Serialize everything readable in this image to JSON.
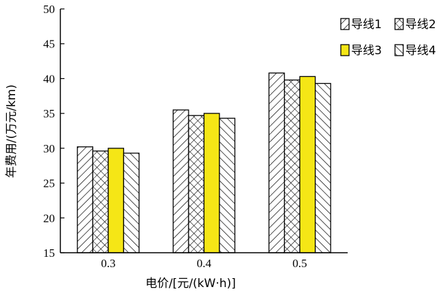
{
  "chart_data": {
    "type": "bar",
    "xlabel": "电价/[元/(kW·h)]",
    "ylabel": "年费用/(万元/km)",
    "categories": [
      "0.3",
      "0.4",
      "0.5"
    ],
    "ylim": [
      15,
      50
    ],
    "yticks": [
      "15",
      "20",
      "25",
      "30",
      "35",
      "40",
      "45",
      "50"
    ],
    "grid": false,
    "legend_position": "top-right",
    "series": [
      {
        "name": "导线1",
        "values": [
          30.2,
          35.5,
          40.8
        ],
        "fill": "hatch-right",
        "color": "#ffffff"
      },
      {
        "name": "导线2",
        "values": [
          29.6,
          34.7,
          39.8
        ],
        "fill": "crosshatch",
        "color": "#ffffff"
      },
      {
        "name": "导线3",
        "values": [
          30.0,
          35.0,
          40.3
        ],
        "fill": "solid",
        "color": "#f5e616"
      },
      {
        "name": "导线4",
        "values": [
          29.3,
          34.3,
          39.3
        ],
        "fill": "hatch-left",
        "color": "#ffffff"
      }
    ]
  }
}
